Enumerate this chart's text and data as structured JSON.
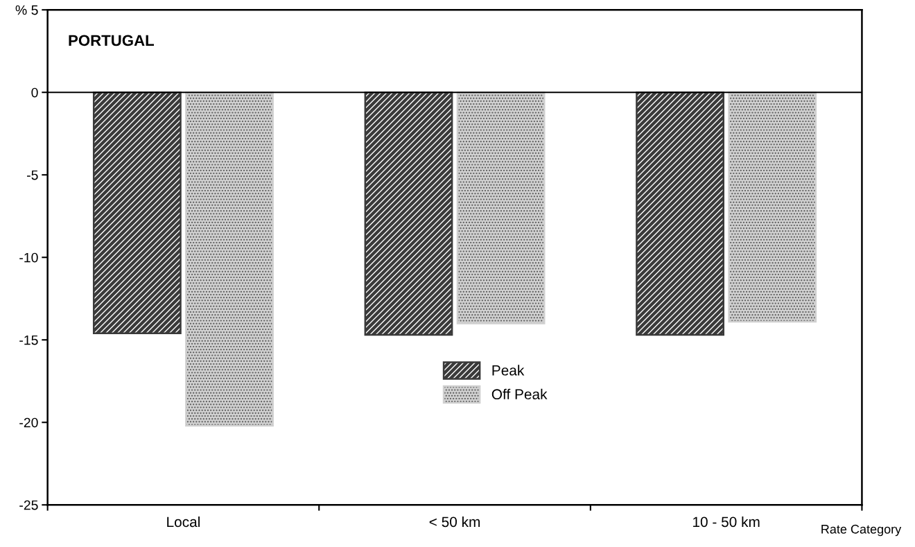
{
  "chart_data": {
    "type": "bar",
    "title": "PORTUGAL",
    "xlabel": "Rate Category",
    "categories": [
      "Local",
      "< 50 km",
      "10 - 50 km"
    ],
    "series": [
      {
        "name": "Peak",
        "color": "#3a3a3a",
        "values": [
          -14.6,
          -14.7,
          -14.7
        ]
      },
      {
        "name": "Off Peak",
        "color": "#d0d0d0",
        "values": [
          -20.2,
          -14.0,
          -13.9
        ]
      }
    ],
    "ylim": [
      -25,
      5
    ],
    "yticks": [
      -25,
      -20,
      -15,
      -10,
      -5,
      0,
      {
        "value": 5,
        "label": "% 5"
      }
    ],
    "ref_lines": [
      {
        "axis": "y",
        "value": 0,
        "color": "#000000"
      }
    ],
    "grid": false,
    "legend": "bottom"
  }
}
